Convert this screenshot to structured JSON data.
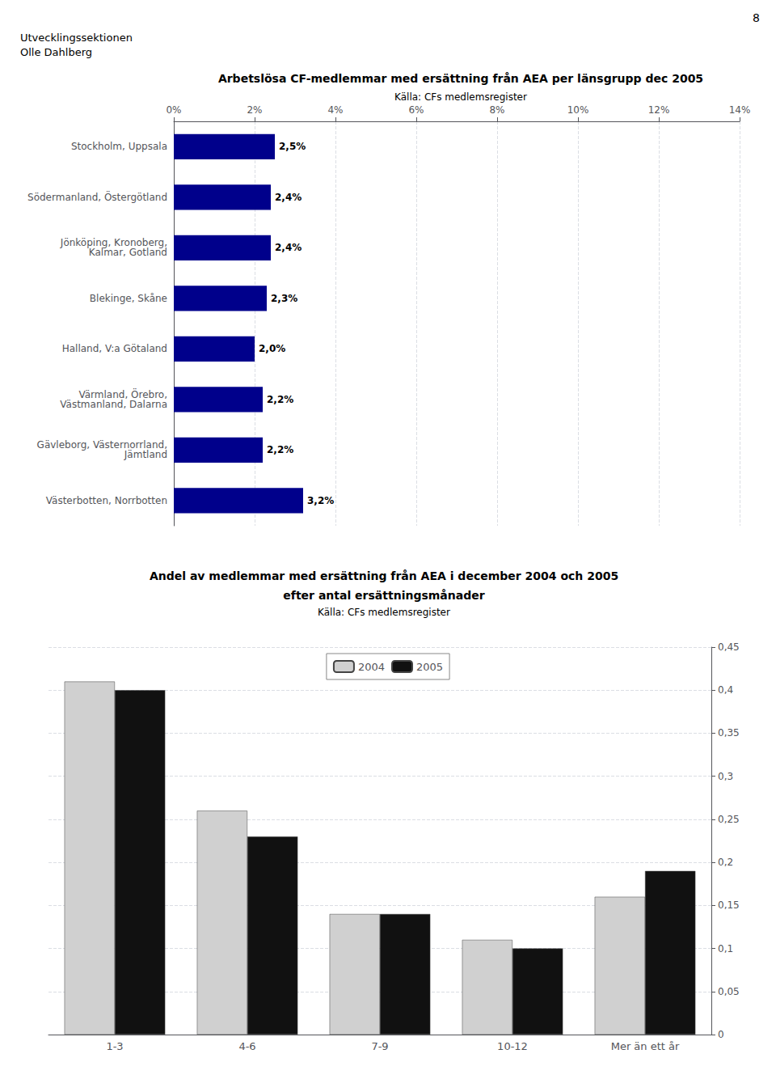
{
  "annotations": [
    "Utvecklingssektionen",
    "Olle Dahlberg",
    "8"
  ],
  "chart_data": [
    {
      "type": "bar",
      "orientation": "horizontal",
      "title": "Arbetslösa CF-medlemmar med ersättning från AEA per länsgrupp dec 2005",
      "subtitle": "Källa: CFs medlemsregister",
      "categories": [
        "Stockholm, Uppsala",
        "Södermanland, Östergötland",
        "Jönköping, Kronoberg,\nKalmar, Gotland",
        "Blekinge, Skåne",
        "Halland, V:a Götaland",
        "Värmland, Örebro,\nVästmanland, Dalarna",
        "Gävleborg, Västernorrland,\nJämtland",
        "Västerbotten, Norrbotten"
      ],
      "values": [
        2.5,
        2.4,
        2.4,
        2.3,
        2.0,
        2.2,
        2.2,
        3.2
      ],
      "value_labels": [
        "2,5%",
        "2,4%",
        "2,4%",
        "2,3%",
        "2,0%",
        "2,2%",
        "2,2%",
        "3,2%"
      ],
      "data_labels": true,
      "color": "#00008B",
      "xlim": [
        0,
        14
      ],
      "xticks": [
        {
          "value": 0,
          "label": "0%"
        },
        {
          "value": 2,
          "label": "2%"
        },
        {
          "value": 4,
          "label": "4%"
        },
        {
          "value": 6,
          "label": "6%"
        },
        {
          "value": 8,
          "label": "8%"
        },
        {
          "value": 10,
          "label": "10%"
        },
        {
          "value": 12,
          "label": "12%"
        },
        {
          "value": 14,
          "label": "14%"
        }
      ],
      "grid": true
    },
    {
      "type": "bar",
      "title": "Andel av medlemmar med ersättning från AEA i december 2004 och 2005",
      "subtitle": [
        "efter antal ersättningsmånader",
        "Källa: CFs medlemsregister"
      ],
      "categories": [
        "1-3",
        "4-6",
        "7-9",
        "10-12",
        "Mer än ett år"
      ],
      "series": [
        {
          "name": "2004",
          "color": "#d0d0d0",
          "values": [
            0.41,
            0.26,
            0.14,
            0.11,
            0.16
          ]
        },
        {
          "name": "2005",
          "color": "#111111",
          "values": [
            0.4,
            0.23,
            0.14,
            0.1,
            0.19
          ]
        }
      ],
      "ylim": [
        0,
        0.45
      ],
      "yticks": [
        0,
        {
          "value": 0.05,
          "label": "0,05"
        },
        {
          "value": 0.1,
          "label": "0,1"
        },
        {
          "value": 0.15,
          "label": "0,15"
        },
        {
          "value": 0.2,
          "label": "0,2"
        },
        {
          "value": 0.25,
          "label": "0,25"
        },
        {
          "value": 0.3,
          "label": "0,3"
        },
        {
          "value": 0.35,
          "label": "0,35"
        },
        {
          "value": 0.4,
          "label": "0,4"
        },
        {
          "value": 0.45,
          "label": "0,45"
        }
      ],
      "grid": true,
      "legend": "top"
    }
  ]
}
